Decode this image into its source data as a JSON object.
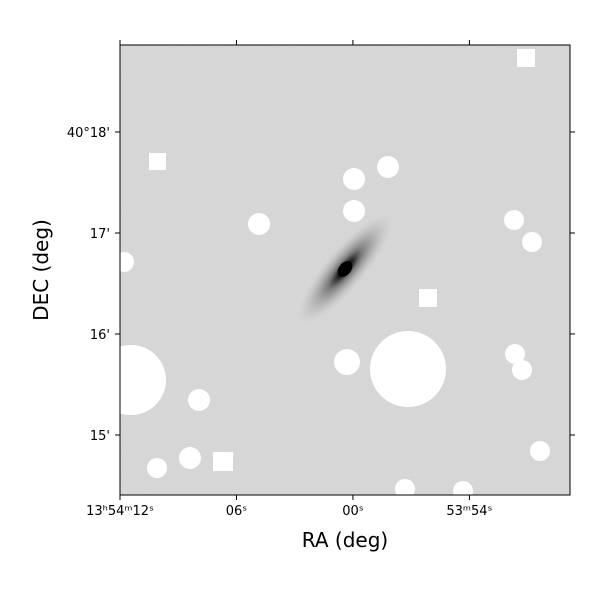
{
  "chart_data": {
    "type": "image",
    "xlabel": "RA (deg)",
    "ylabel": "DEC (deg)",
    "xlim": [
      208.55,
      208.4534
    ],
    "ylim": [
      40.2401,
      40.31435
    ],
    "xticks": [
      {
        "value": 208.55,
        "label": "13ʰ54ᵐ12ˢ"
      },
      {
        "value": 208.525,
        "label": "06ˢ"
      },
      {
        "value": 208.5,
        "label": "00ˢ"
      },
      {
        "value": 208.475,
        "label": "53ᵐ54ˢ"
      }
    ],
    "yticks": [
      {
        "value": 40.3,
        "label": "40°18'"
      },
      {
        "value": 40.28333,
        "label": "17'"
      },
      {
        "value": 40.26667,
        "label": "16'"
      },
      {
        "value": 40.25,
        "label": "15'"
      }
    ]
  }
}
